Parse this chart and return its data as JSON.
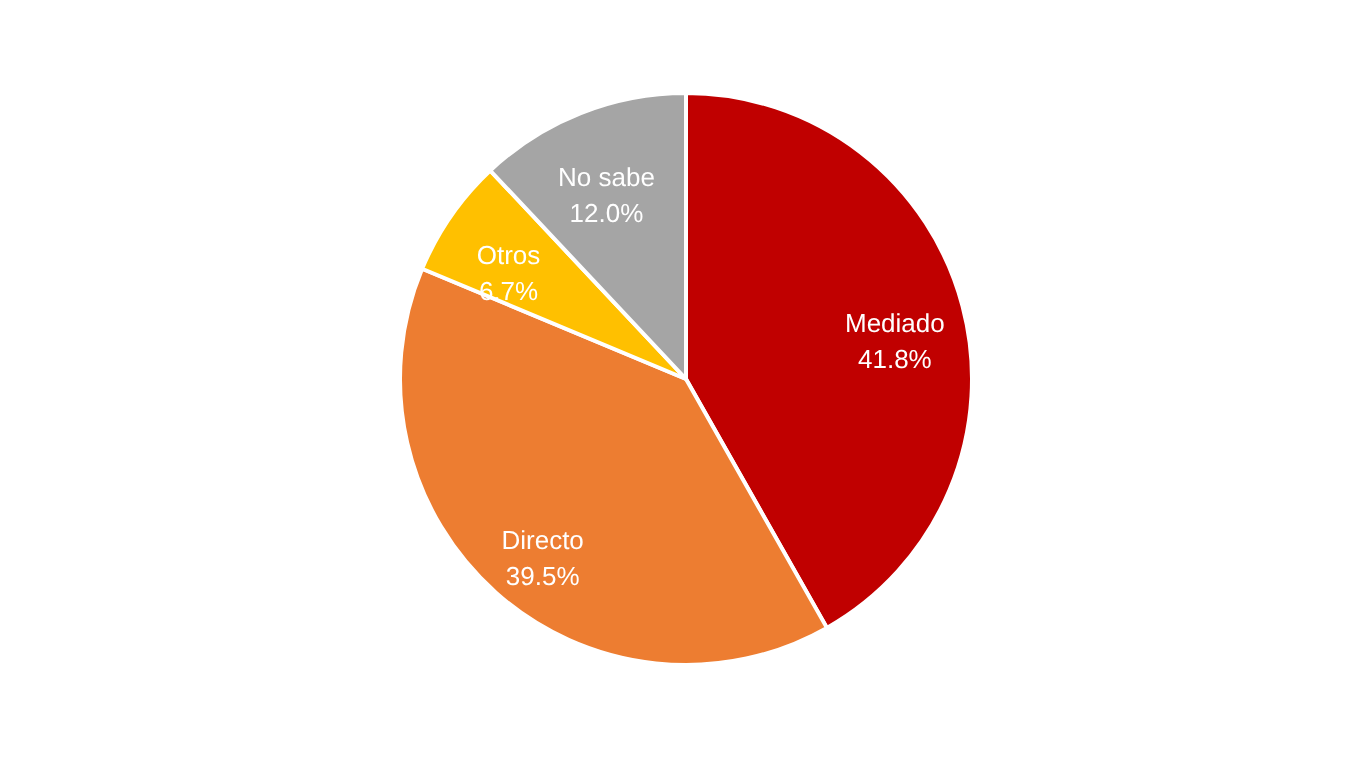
{
  "chart_data": {
    "type": "pie",
    "categories": [
      "Mediado",
      "Directo",
      "Otros",
      "No sabe"
    ],
    "values": [
      41.8,
      39.5,
      6.7,
      12.0
    ],
    "colors": [
      "#c00000",
      "#ed7d31",
      "#ffc000",
      "#a5a5a5"
    ],
    "value_labels": [
      "41.8%",
      "39.5%",
      "6.7%",
      "12.0%"
    ]
  }
}
